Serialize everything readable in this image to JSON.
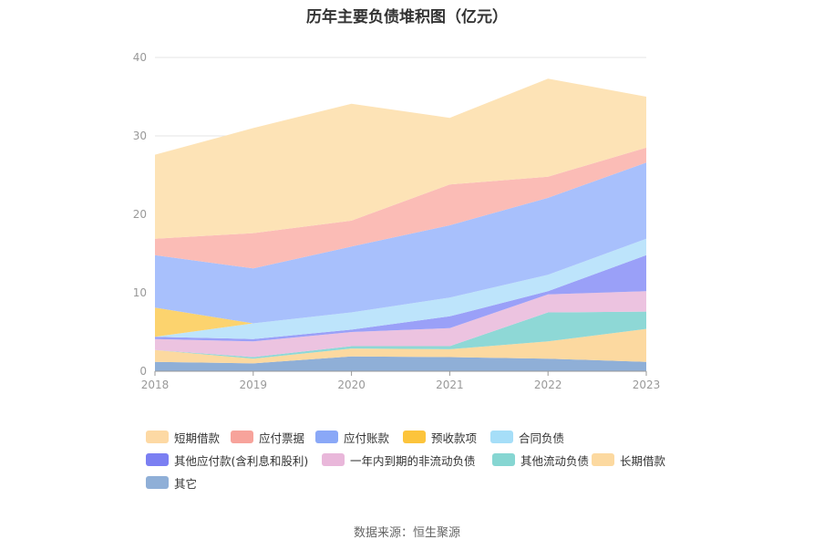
{
  "chart_data": {
    "type": "area",
    "stacked": true,
    "title": "历年主要负债堆积图（亿元）",
    "x": [
      "2018",
      "2019",
      "2020",
      "2021",
      "2022",
      "2023"
    ],
    "ylim": [
      0,
      40
    ],
    "yticks": [
      "0",
      "10",
      "20",
      "30",
      "40"
    ],
    "grid": true,
    "legend_position": "bottom",
    "series": [
      {
        "name": "其它",
        "color": "#8fafd7",
        "values": [
          1.2,
          1.0,
          1.9,
          1.8,
          1.6,
          1.2
        ]
      },
      {
        "name": "长期借款",
        "color": "#fcd9a0",
        "values": [
          1.5,
          0.6,
          1.0,
          1.0,
          2.2,
          4.2
        ]
      },
      {
        "name": "其他流动负债",
        "color": "#8ed8d6",
        "values": [
          0.0,
          0.2,
          0.3,
          0.4,
          3.7,
          2.2
        ]
      },
      {
        "name": "一年内到期的非流动负债",
        "color": "#ecc3e0",
        "values": [
          1.4,
          2.0,
          1.8,
          2.3,
          2.3,
          2.6
        ]
      },
      {
        "name": "其他应付款(含利息和股利)",
        "color": "#9aa0f8",
        "values": [
          0.3,
          0.3,
          0.3,
          1.5,
          0.4,
          4.6
        ]
      },
      {
        "name": "合同负债",
        "color": "#bde4fb",
        "values": [
          0.0,
          2.0,
          2.2,
          2.4,
          2.1,
          2.1
        ]
      },
      {
        "name": "预收款项",
        "color": "#fcd36e",
        "values": [
          3.7,
          0.0,
          0.0,
          0.0,
          0.0,
          0.0
        ]
      },
      {
        "name": "应付账款",
        "color": "#a8c0fc",
        "values": [
          6.7,
          7.0,
          8.4,
          9.2,
          9.8,
          9.7
        ]
      },
      {
        "name": "应付票据",
        "color": "#fbbcb6",
        "values": [
          2.1,
          4.5,
          3.3,
          5.2,
          2.7,
          1.9
        ]
      },
      {
        "name": "短期借款",
        "color": "#fde3b6",
        "values": [
          10.7,
          13.4,
          14.9,
          8.5,
          12.5,
          6.5
        ]
      }
    ],
    "legend_order": [
      {
        "name": "短期借款",
        "color": "#fdd9a4"
      },
      {
        "name": "应付票据",
        "color": "#f7a39b"
      },
      {
        "name": "应付账款",
        "color": "#8aa8f7"
      },
      {
        "name": "预收款项",
        "color": "#fcc43c"
      },
      {
        "name": "合同负债",
        "color": "#a6def8"
      },
      {
        "name": "其他应付款(含利息和股利)",
        "color": "#7b7ff2"
      },
      {
        "name": "一年内到期的非流动负债",
        "color": "#e9b7da"
      },
      {
        "name": "其他流动负债",
        "color": "#86d6d2"
      },
      {
        "name": "长期借款",
        "color": "#fcd9a0"
      },
      {
        "name": "其它",
        "color": "#8fafd7"
      }
    ],
    "axis_color": "#999999",
    "grid_color": "#e6e6e6"
  },
  "source": "数据来源：恒生聚源"
}
